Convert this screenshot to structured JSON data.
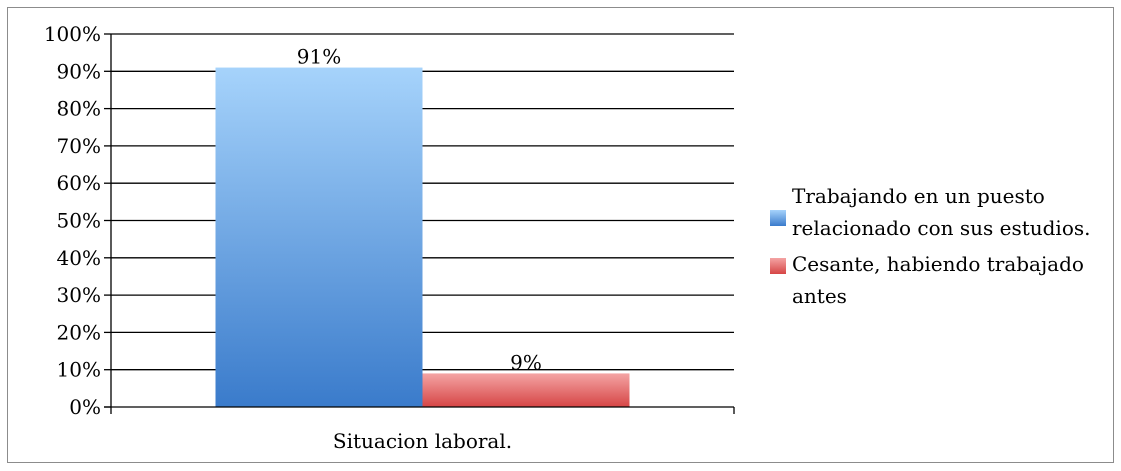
{
  "chart_data": {
    "type": "bar",
    "categories": [
      "Situacion laboral."
    ],
    "series": [
      {
        "name": "Trabajando en un puesto relacionado con sus estudios.",
        "values": [
          91
        ],
        "data_label": "91%",
        "color_top": "#a6d3fb",
        "color_bottom": "#3a7bcb"
      },
      {
        "name": "Cesante, habiendo trabajado antes",
        "values": [
          9
        ],
        "data_label": "9%",
        "color_top": "#f4a4a4",
        "color_bottom": "#d64545"
      }
    ],
    "ylim": [
      0,
      100
    ],
    "yticks": [
      "0%",
      "10%",
      "20%",
      "30%",
      "40%",
      "50%",
      "60%",
      "70%",
      "80%",
      "90%",
      "100%"
    ],
    "ytick_values": [
      0,
      10,
      20,
      30,
      40,
      50,
      60,
      70,
      80,
      90,
      100
    ],
    "grid": true,
    "legend_position": "right",
    "title": "",
    "xlabel": "",
    "ylabel": ""
  }
}
